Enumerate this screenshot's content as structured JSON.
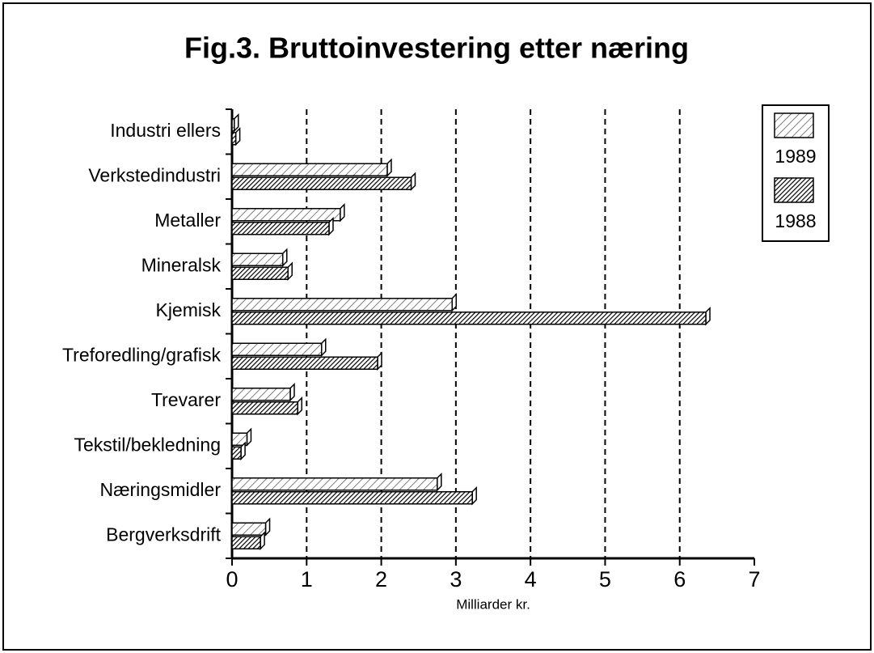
{
  "chart_data": {
    "type": "hbar",
    "title": "Fig.3. Bruttoinvestering etter næring",
    "xlabel": "Milliarder kr.",
    "categories": [
      "Bergverksdrift",
      "Næringsmidler",
      "Tekstil/bekledning",
      "Trevarer",
      "Treforedling/grafisk",
      "Kjemisk",
      "Mineralsk",
      "Metaller",
      "Verkstedindustri",
      "Industri ellers"
    ],
    "series": [
      {
        "name": "1989",
        "color": "#555555",
        "values": [
          0.45,
          2.75,
          0.2,
          0.78,
          1.2,
          2.95,
          0.68,
          1.45,
          2.08,
          0.03
        ]
      },
      {
        "name": "1988",
        "color": "#000000",
        "values": [
          0.38,
          3.22,
          0.12,
          0.88,
          1.95,
          6.35,
          0.75,
          1.3,
          2.4,
          0.05
        ]
      }
    ],
    "xlim": [
      0,
      7
    ],
    "xticks": [
      0,
      1,
      2,
      3,
      4,
      5,
      6,
      7
    ],
    "grid": true,
    "legend": "right"
  }
}
